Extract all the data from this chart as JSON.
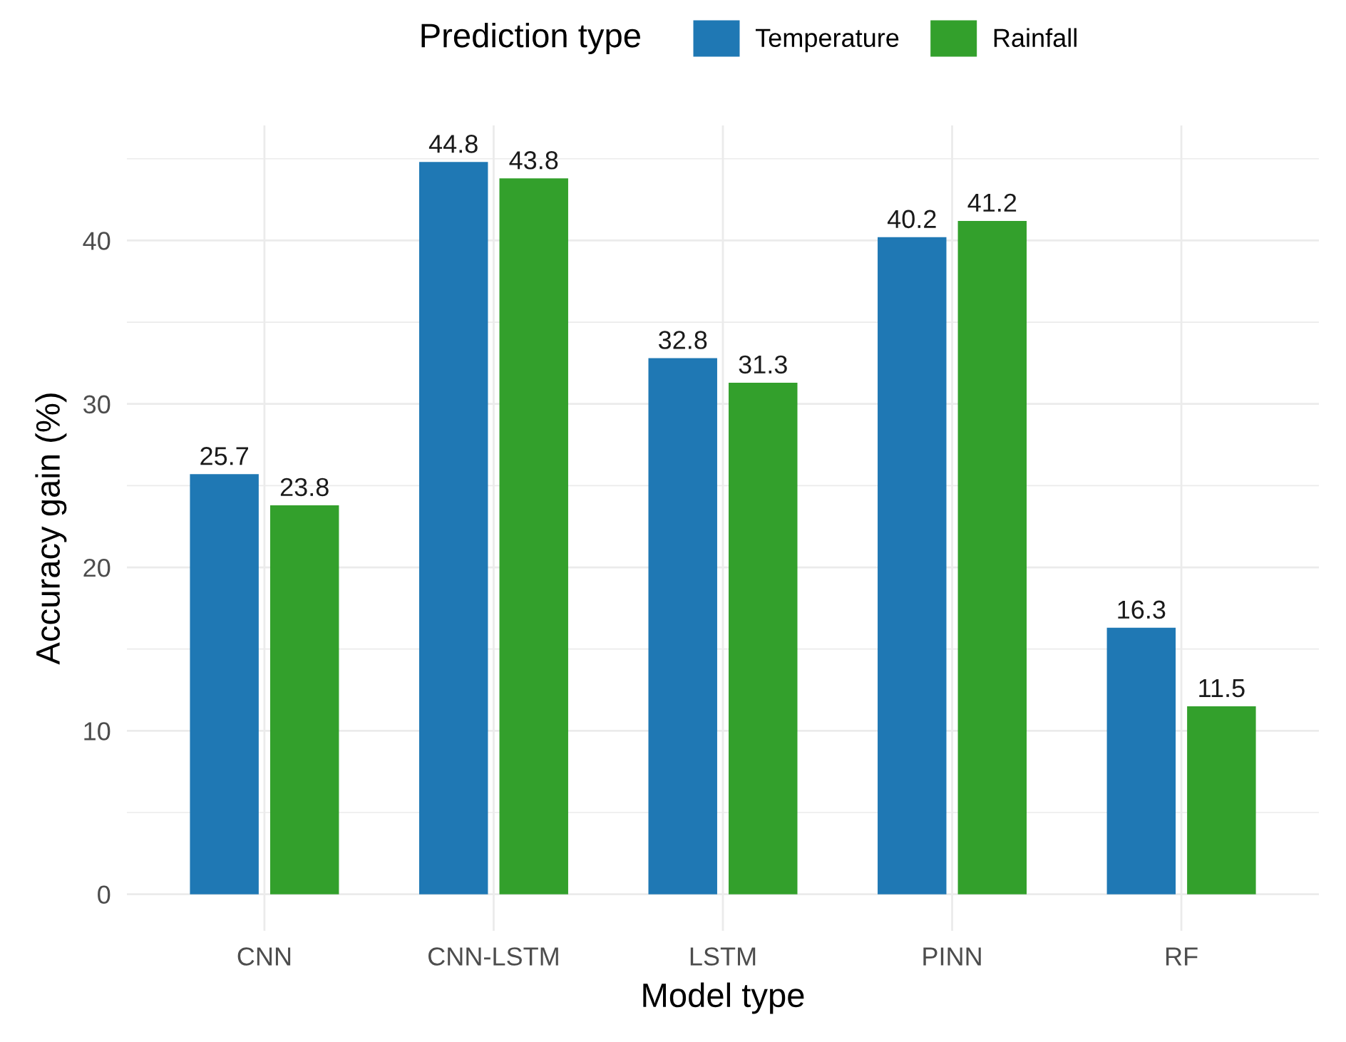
{
  "chart_data": {
    "type": "bar",
    "xlabel": "Model type",
    "ylabel": "Accuracy gain (%)",
    "legend_title": "Prediction type",
    "categories": [
      "CNN",
      "CNN-LSTM",
      "LSTM",
      "PINN",
      "RF"
    ],
    "series": [
      {
        "name": "Temperature",
        "color": "#1f78b4",
        "values": [
          25.7,
          44.8,
          32.8,
          40.2,
          16.3
        ]
      },
      {
        "name": "Rainfall",
        "color": "#33a02c",
        "values": [
          23.8,
          43.8,
          31.3,
          41.2,
          11.5
        ]
      }
    ],
    "ylim": [
      -2.24,
      47.04
    ],
    "yticks": [
      0,
      {
        "value": 5,
        "label": null
      },
      10,
      {
        "value": 15,
        "label": null
      },
      20,
      {
        "value": 25,
        "label": null
      },
      30,
      {
        "value": 35,
        "label": null
      },
      40,
      {
        "value": 45,
        "label": null
      }
    ],
    "grid": true,
    "legend": "top",
    "data_labels": true
  }
}
